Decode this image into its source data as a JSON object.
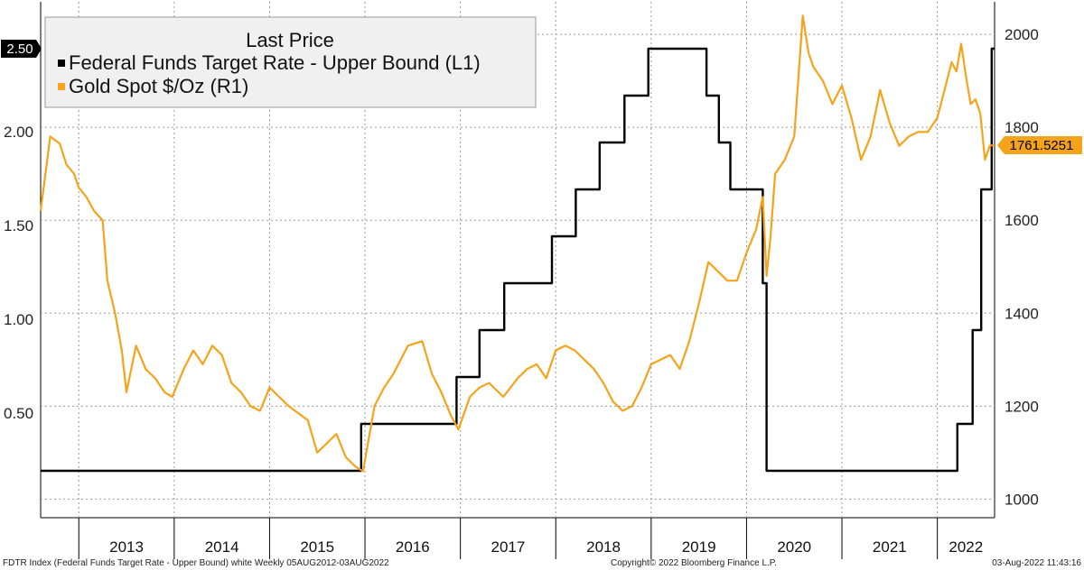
{
  "chart_data": {
    "type": "line",
    "legend": {
      "title": "Last Price",
      "position": "top-left",
      "entries": [
        {
          "name": "Federal Funds Target Rate - Upper Bound  (L1)",
          "color": "#000000"
        },
        {
          "name": "Gold Spot $/Oz  (R1)",
          "color": "#f5a31a"
        }
      ]
    },
    "left_axis": {
      "ticks": [
        0.5,
        1.0,
        1.5,
        2.0
      ],
      "tick_labels": [
        "0.50",
        "1.00",
        "1.50",
        "2.00"
      ],
      "range": [
        0.0,
        2.75
      ]
    },
    "right_axis": {
      "ticks": [
        1000,
        1200,
        1400,
        1600,
        1800,
        2000
      ],
      "tick_labels": [
        "1000",
        "1200",
        "1400",
        "1600",
        "1800",
        "2000"
      ],
      "range": [
        960,
        2070
      ]
    },
    "x_axis": {
      "range": [
        2012.6,
        2022.6
      ],
      "years": [
        "2013",
        "2014",
        "2015",
        "2016",
        "2017",
        "2018",
        "2019",
        "2020",
        "2021",
        "2022"
      ]
    },
    "last_values": {
      "fed": "2.50",
      "fed_value": 2.5,
      "gold": "1761.5251",
      "gold_value": 1761.5
    },
    "series": [
      {
        "name": "Federal Funds Target Rate - Upper Bound",
        "axis": "left",
        "color": "#000000",
        "step": true,
        "x": [
          2012.6,
          2015.96,
          2016.96,
          2017.2,
          2017.46,
          2017.96,
          2018.21,
          2018.46,
          2018.72,
          2018.97,
          2019.58,
          2019.71,
          2019.83,
          2020.17,
          2020.21,
          2022.21,
          2022.37,
          2022.46,
          2022.57,
          2022.6
        ],
        "y": [
          0.25,
          0.5,
          0.75,
          1.0,
          1.25,
          1.5,
          1.75,
          2.0,
          2.25,
          2.5,
          2.25,
          2.0,
          1.75,
          1.25,
          0.25,
          0.5,
          1.0,
          1.75,
          2.5,
          2.5
        ]
      },
      {
        "name": "Gold Spot $/Oz",
        "axis": "right",
        "color": "#f5a31a",
        "step": false,
        "x": [
          2012.6,
          2012.7,
          2012.8,
          2012.87,
          2012.95,
          2013.0,
          2013.08,
          2013.16,
          2013.25,
          2013.3,
          2013.38,
          2013.45,
          2013.5,
          2013.6,
          2013.7,
          2013.8,
          2013.9,
          2013.98,
          2014.1,
          2014.2,
          2014.3,
          2014.4,
          2014.5,
          2014.6,
          2014.7,
          2014.8,
          2014.9,
          2015.0,
          2015.1,
          2015.2,
          2015.3,
          2015.4,
          2015.5,
          2015.6,
          2015.7,
          2015.8,
          2015.9,
          2015.98,
          2016.1,
          2016.2,
          2016.3,
          2016.45,
          2016.6,
          2016.7,
          2016.8,
          2016.9,
          2016.98,
          2017.1,
          2017.2,
          2017.3,
          2017.45,
          2017.6,
          2017.7,
          2017.8,
          2017.9,
          2018.0,
          2018.1,
          2018.2,
          2018.3,
          2018.4,
          2018.5,
          2018.6,
          2018.7,
          2018.8,
          2018.9,
          2019.0,
          2019.1,
          2019.2,
          2019.3,
          2019.4,
          2019.5,
          2019.6,
          2019.7,
          2019.8,
          2019.9,
          2020.0,
          2020.1,
          2020.17,
          2020.21,
          2020.25,
          2020.3,
          2020.4,
          2020.5,
          2020.59,
          2020.65,
          2020.7,
          2020.8,
          2020.9,
          2021.0,
          2021.1,
          2021.2,
          2021.3,
          2021.4,
          2021.5,
          2021.6,
          2021.7,
          2021.8,
          2021.9,
          2022.0,
          2022.1,
          2022.15,
          2022.2,
          2022.25,
          2022.3,
          2022.35,
          2022.4,
          2022.45,
          2022.5,
          2022.55,
          2022.6
        ],
        "y": [
          1620,
          1780,
          1765,
          1720,
          1700,
          1670,
          1650,
          1620,
          1600,
          1470,
          1400,
          1320,
          1230,
          1330,
          1280,
          1260,
          1230,
          1220,
          1280,
          1320,
          1290,
          1330,
          1310,
          1250,
          1230,
          1200,
          1190,
          1240,
          1220,
          1200,
          1185,
          1170,
          1100,
          1120,
          1140,
          1090,
          1070,
          1060,
          1200,
          1240,
          1270,
          1330,
          1340,
          1270,
          1230,
          1180,
          1150,
          1220,
          1240,
          1250,
          1220,
          1260,
          1280,
          1290,
          1260,
          1320,
          1330,
          1320,
          1300,
          1280,
          1250,
          1210,
          1190,
          1200,
          1240,
          1290,
          1300,
          1310,
          1280,
          1340,
          1420,
          1510,
          1490,
          1470,
          1470,
          1530,
          1580,
          1650,
          1480,
          1560,
          1700,
          1730,
          1780,
          2040,
          1960,
          1930,
          1900,
          1850,
          1890,
          1820,
          1730,
          1780,
          1880,
          1810,
          1760,
          1780,
          1790,
          1790,
          1820,
          1900,
          1940,
          1920,
          1980,
          1910,
          1850,
          1860,
          1830,
          1730,
          1760,
          1762
        ]
      }
    ]
  },
  "footer": {
    "left": "FDTR Index (Federal Funds Target Rate - Upper Bound) white  Weekly 05AUG2012-03AUG2022",
    "center": "Copyright© 2022 Bloomberg Finance L.P.",
    "right": "03-Aug-2022 11:43:16"
  }
}
